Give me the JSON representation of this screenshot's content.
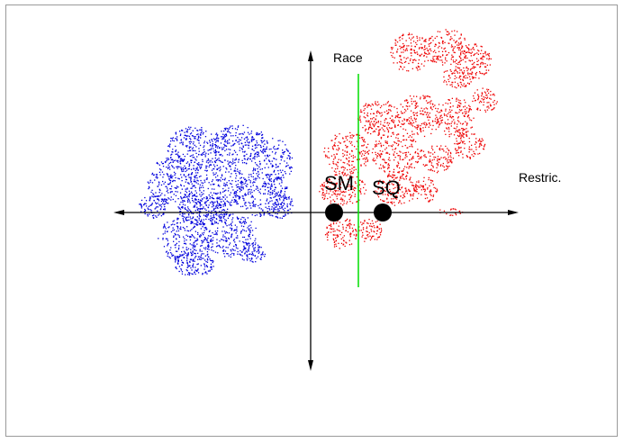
{
  "diagram": {
    "axes": {
      "horizontal_label": "Restric.",
      "vertical_label": "Race"
    },
    "points": [
      {
        "label": "SM",
        "color": "#000000"
      },
      {
        "label": "SQ",
        "color": "#000000"
      }
    ],
    "clusters": [
      {
        "color": "#0000dd"
      },
      {
        "color": "#ee0000"
      }
    ],
    "divider_color": "#00dd00"
  }
}
